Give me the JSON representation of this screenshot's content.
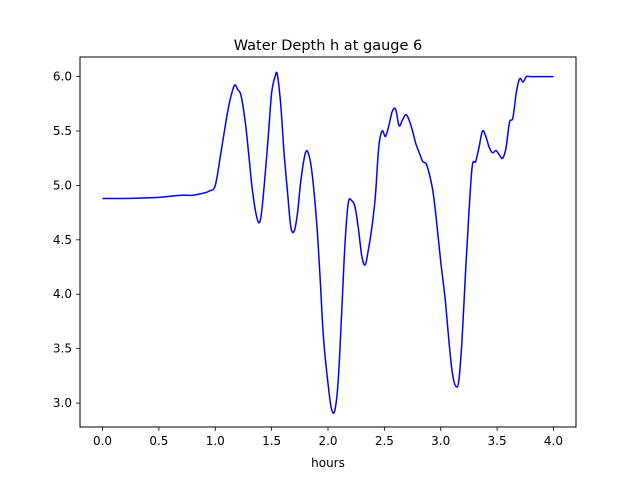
{
  "chart_data": {
    "type": "line",
    "title": "Water Depth h at gauge 6",
    "xlabel": "hours",
    "ylabel": "",
    "xlim": [
      -0.2,
      4.2
    ],
    "ylim": [
      2.78,
      6.18
    ],
    "x_ticks": [
      0.0,
      0.5,
      1.0,
      1.5,
      2.0,
      2.5,
      3.0,
      3.5,
      4.0
    ],
    "x_tick_labels": [
      "0.0",
      "0.5",
      "1.0",
      "1.5",
      "2.0",
      "2.5",
      "3.0",
      "3.5",
      "4.0"
    ],
    "y_ticks": [
      3.0,
      3.5,
      4.0,
      4.5,
      5.0,
      5.5,
      6.0
    ],
    "y_tick_labels": [
      "3.0",
      "3.5",
      "4.0",
      "4.5",
      "5.0",
      "5.5",
      "6.0"
    ],
    "grid": false,
    "series": [
      {
        "color": "#0000ff",
        "x": [
          0.0,
          0.2,
          0.4,
          0.5,
          0.6,
          0.7,
          0.8,
          0.9,
          0.95,
          1.0,
          1.05,
          1.1,
          1.13,
          1.17,
          1.2,
          1.23,
          1.27,
          1.3,
          1.33,
          1.37,
          1.4,
          1.43,
          1.47,
          1.5,
          1.53,
          1.55,
          1.58,
          1.61,
          1.64,
          1.67,
          1.7,
          1.73,
          1.76,
          1.8,
          1.83,
          1.86,
          1.9,
          1.93,
          1.96,
          2.0,
          2.03,
          2.06,
          2.09,
          2.12,
          2.15,
          2.18,
          2.21,
          2.24,
          2.27,
          2.3,
          2.33,
          2.36,
          2.39,
          2.42,
          2.45,
          2.48,
          2.51,
          2.54,
          2.57,
          2.6,
          2.63,
          2.66,
          2.69,
          2.72,
          2.75,
          2.78,
          2.81,
          2.84,
          2.87,
          2.9,
          2.93,
          2.96,
          3.0,
          3.04,
          3.07,
          3.1,
          3.13,
          3.16,
          3.19,
          3.22,
          3.25,
          3.28,
          3.31,
          3.34,
          3.37,
          3.4,
          3.43,
          3.46,
          3.49,
          3.52,
          3.55,
          3.58,
          3.61,
          3.64,
          3.67,
          3.7,
          3.73,
          3.76,
          3.79,
          3.82,
          3.85,
          3.88,
          3.91,
          3.94,
          3.97,
          4.0
        ],
        "y": [
          4.88,
          4.88,
          4.885,
          4.89,
          4.9,
          4.91,
          4.91,
          4.93,
          4.95,
          5.0,
          5.3,
          5.62,
          5.78,
          5.92,
          5.88,
          5.82,
          5.55,
          5.25,
          4.95,
          4.7,
          4.68,
          4.95,
          5.45,
          5.85,
          6.0,
          6.02,
          5.75,
          5.3,
          4.95,
          4.62,
          4.58,
          4.75,
          5.05,
          5.3,
          5.28,
          5.1,
          4.65,
          4.15,
          3.6,
          3.18,
          2.95,
          2.93,
          3.2,
          3.8,
          4.45,
          4.84,
          4.86,
          4.8,
          4.6,
          4.35,
          4.27,
          4.42,
          4.62,
          4.9,
          5.35,
          5.5,
          5.45,
          5.55,
          5.68,
          5.7,
          5.55,
          5.6,
          5.65,
          5.6,
          5.5,
          5.38,
          5.3,
          5.22,
          5.2,
          5.1,
          4.95,
          4.7,
          4.3,
          3.95,
          3.6,
          3.3,
          3.16,
          3.2,
          3.6,
          4.2,
          4.75,
          5.18,
          5.22,
          5.35,
          5.5,
          5.45,
          5.35,
          5.3,
          5.32,
          5.28,
          5.25,
          5.35,
          5.58,
          5.62,
          5.85,
          5.98,
          5.95,
          6.0,
          6.0,
          6.0,
          6.0,
          6.0,
          6.0,
          6.0,
          6.0,
          6.0
        ]
      }
    ]
  }
}
